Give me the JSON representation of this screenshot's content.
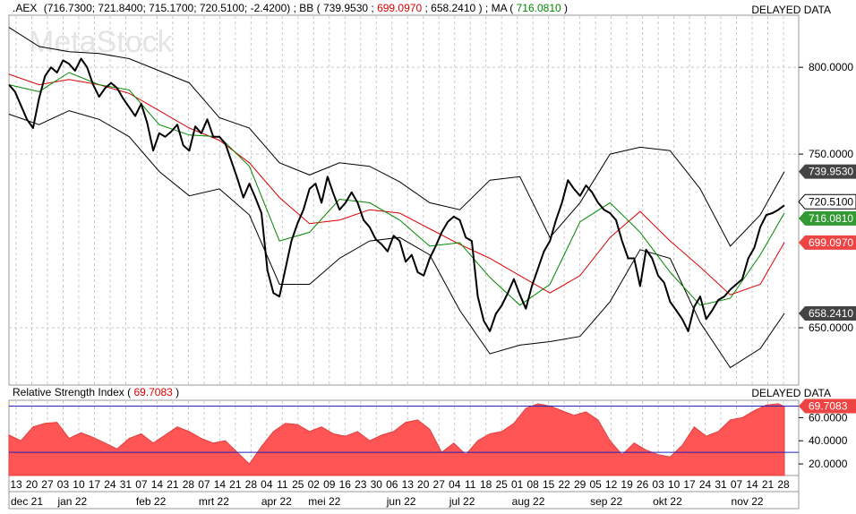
{
  "header": {
    "symbol": ".AEX",
    "ohlc": "(716.7300; 721.8400; 715.1700; 720.5100; -2.4200)",
    "bb_label": "BB",
    "bb_open": " (",
    "bb_upper": "739.9530",
    "bb_mid": "699.0970",
    "bb_lower": "658.2410",
    "ma_label": "MA",
    "ma_open": " (",
    "ma_value": "716.0810",
    "close_paren": ")",
    "sep": "; ",
    "delayed": "DELAYED DATA"
  },
  "watermark": "MetaStock",
  "rsi_header": {
    "label": "Relative Strength Index",
    "value": "69.7083",
    "open": " (",
    "close": ")",
    "delayed": "DELAYED DATA"
  },
  "colors": {
    "price": "#000000",
    "bb_bands": "#000000",
    "bb_mid": "#dd0000",
    "ma": "#008800",
    "rsi_fill": "#ff5555",
    "rsi_levels": "#2222bb",
    "grid": "#c8c8c8"
  },
  "chart_data": [
    {
      "type": "line",
      "panel": "price",
      "y_ticks": [
        "800.0000",
        "750.0000",
        "650.0000"
      ],
      "ylim": [
        617,
        830
      ],
      "last_value_badges": [
        {
          "series": "BB upper",
          "value": 739.953,
          "label": "739.9530"
        },
        {
          "series": "close",
          "value": 720.51,
          "label": "720.5100"
        },
        {
          "series": "MA",
          "value": 716.081,
          "label": "716.0810"
        },
        {
          "series": "BB middle",
          "value": 699.097,
          "label": "699.0970"
        },
        {
          "series": "BB lower",
          "value": 658.241,
          "label": "658.2410"
        }
      ],
      "close": [
        [
          0,
          790
        ],
        [
          1,
          786
        ],
        [
          2,
          778
        ],
        [
          3,
          770
        ],
        [
          4,
          765
        ],
        [
          5,
          782
        ],
        [
          6,
          795
        ],
        [
          7,
          800
        ],
        [
          8,
          797
        ],
        [
          9,
          804
        ],
        [
          10,
          802
        ],
        [
          11,
          798
        ],
        [
          12,
          805
        ],
        [
          13,
          800
        ],
        [
          14,
          790
        ],
        [
          15,
          783
        ],
        [
          16,
          788
        ],
        [
          17,
          791
        ],
        [
          18,
          788
        ],
        [
          19,
          782
        ],
        [
          20,
          777
        ],
        [
          21,
          772
        ],
        [
          22,
          779
        ],
        [
          23,
          768
        ],
        [
          24,
          752
        ],
        [
          25,
          762
        ],
        [
          26,
          760
        ],
        [
          27,
          763
        ],
        [
          28,
          767
        ],
        [
          29,
          755
        ],
        [
          30,
          752
        ],
        [
          31,
          766
        ],
        [
          32,
          762
        ],
        [
          33,
          770
        ],
        [
          34,
          760
        ],
        [
          35,
          760
        ],
        [
          36,
          756
        ],
        [
          37,
          746
        ],
        [
          38,
          736
        ],
        [
          39,
          725
        ],
        [
          40,
          733
        ],
        [
          41,
          725
        ],
        [
          42,
          716
        ],
        [
          43,
          683
        ],
        [
          44,
          670
        ],
        [
          45,
          668
        ],
        [
          46,
          684
        ],
        [
          47,
          700
        ],
        [
          48,
          710
        ],
        [
          49,
          718
        ],
        [
          50,
          730
        ],
        [
          51,
          733
        ],
        [
          52,
          722
        ],
        [
          53,
          737
        ],
        [
          54,
          727
        ],
        [
          55,
          718
        ],
        [
          56,
          722
        ],
        [
          57,
          728
        ],
        [
          58,
          722
        ],
        [
          59,
          712
        ],
        [
          60,
          708
        ],
        [
          61,
          701
        ],
        [
          62,
          698
        ],
        [
          63,
          694
        ],
        [
          64,
          703
        ],
        [
          65,
          700
        ],
        [
          66,
          688
        ],
        [
          67,
          692
        ],
        [
          68,
          682
        ],
        [
          69,
          680
        ],
        [
          70,
          690
        ],
        [
          71,
          697
        ],
        [
          72,
          705
        ],
        [
          73,
          711
        ],
        [
          74,
          714
        ],
        [
          75,
          712
        ],
        [
          76,
          702
        ],
        [
          77,
          700
        ],
        [
          78,
          668
        ],
        [
          79,
          654
        ],
        [
          80,
          648
        ],
        [
          81,
          658
        ],
        [
          82,
          663
        ],
        [
          83,
          670
        ],
        [
          84,
          678
        ],
        [
          85,
          669
        ],
        [
          86,
          661
        ],
        [
          87,
          674
        ],
        [
          88,
          684
        ],
        [
          89,
          694
        ],
        [
          90,
          700
        ],
        [
          91,
          712
        ],
        [
          92,
          722
        ],
        [
          93,
          735
        ],
        [
          94,
          730
        ],
        [
          95,
          726
        ],
        [
          96,
          732
        ],
        [
          97,
          728
        ],
        [
          98,
          722
        ],
        [
          99,
          718
        ],
        [
          100,
          716
        ],
        [
          101,
          712
        ],
        [
          102,
          700
        ],
        [
          103,
          690
        ],
        [
          104,
          690
        ],
        [
          105,
          674
        ],
        [
          106,
          695
        ],
        [
          107,
          690
        ],
        [
          108,
          680
        ],
        [
          109,
          676
        ],
        [
          110,
          665
        ],
        [
          111,
          660
        ],
        [
          112,
          655
        ],
        [
          113,
          648
        ],
        [
          114,
          662
        ],
        [
          115,
          668
        ],
        [
          116,
          655
        ],
        [
          117,
          660
        ],
        [
          118,
          666
        ],
        [
          119,
          668
        ],
        [
          120,
          672
        ],
        [
          121,
          675
        ],
        [
          122,
          678
        ],
        [
          123,
          690
        ],
        [
          124,
          696
        ],
        [
          125,
          708
        ],
        [
          126,
          715
        ],
        [
          127,
          716
        ],
        [
          128,
          718
        ],
        [
          129,
          720.51
        ]
      ],
      "ma": [
        [
          0,
          790
        ],
        [
          5,
          786
        ],
        [
          10,
          797
        ],
        [
          15,
          790
        ],
        [
          20,
          787
        ],
        [
          25,
          767
        ],
        [
          30,
          761
        ],
        [
          35,
          760
        ],
        [
          40,
          743
        ],
        [
          45,
          700
        ],
        [
          50,
          705
        ],
        [
          55,
          724
        ],
        [
          60,
          722
        ],
        [
          65,
          712
        ],
        [
          70,
          697
        ],
        [
          75,
          699
        ],
        [
          80,
          679
        ],
        [
          85,
          663
        ],
        [
          90,
          675
        ],
        [
          95,
          711
        ],
        [
          100,
          722
        ],
        [
          105,
          705
        ],
        [
          110,
          682
        ],
        [
          115,
          663
        ],
        [
          120,
          667
        ],
        [
          125,
          692
        ],
        [
          129,
          716.081
        ]
      ],
      "bb_middle": [
        [
          0,
          796
        ],
        [
          5,
          790
        ],
        [
          10,
          793
        ],
        [
          15,
          790
        ],
        [
          20,
          785
        ],
        [
          25,
          775
        ],
        [
          30,
          765
        ],
        [
          35,
          758
        ],
        [
          40,
          745
        ],
        [
          45,
          725
        ],
        [
          50,
          710
        ],
        [
          55,
          712
        ],
        [
          60,
          718
        ],
        [
          65,
          716
        ],
        [
          70,
          707
        ],
        [
          75,
          698
        ],
        [
          80,
          690
        ],
        [
          85,
          680
        ],
        [
          90,
          670
        ],
        [
          95,
          680
        ],
        [
          100,
          702
        ],
        [
          105,
          717
        ],
        [
          110,
          700
        ],
        [
          115,
          685
        ],
        [
          120,
          669
        ],
        [
          125,
          675
        ],
        [
          129,
          699.097
        ]
      ],
      "bb_upper": [
        [
          0,
          823
        ],
        [
          5,
          812
        ],
        [
          10,
          809
        ],
        [
          15,
          808
        ],
        [
          20,
          805
        ],
        [
          25,
          798
        ],
        [
          30,
          791
        ],
        [
          35,
          771
        ],
        [
          40,
          765
        ],
        [
          45,
          745
        ],
        [
          50,
          738
        ],
        [
          55,
          745
        ],
        [
          60,
          743
        ],
        [
          65,
          734
        ],
        [
          70,
          722
        ],
        [
          75,
          718
        ],
        [
          80,
          735
        ],
        [
          85,
          737
        ],
        [
          90,
          702
        ],
        [
          95,
          722
        ],
        [
          100,
          750
        ],
        [
          105,
          754
        ],
        [
          110,
          752
        ],
        [
          115,
          730
        ],
        [
          120,
          697
        ],
        [
          125,
          715
        ],
        [
          129,
          739.953
        ]
      ],
      "bb_lower": [
        [
          0,
          773
        ],
        [
          5,
          767
        ],
        [
          10,
          775
        ],
        [
          15,
          770
        ],
        [
          20,
          760
        ],
        [
          25,
          740
        ],
        [
          30,
          726
        ],
        [
          35,
          730
        ],
        [
          40,
          715
        ],
        [
          45,
          675
        ],
        [
          50,
          675
        ],
        [
          55,
          690
        ],
        [
          60,
          700
        ],
        [
          65,
          702
        ],
        [
          70,
          692
        ],
        [
          75,
          660
        ],
        [
          80,
          635
        ],
        [
          85,
          640
        ],
        [
          90,
          642
        ],
        [
          95,
          645
        ],
        [
          100,
          665
        ],
        [
          105,
          695
        ],
        [
          110,
          690
        ],
        [
          115,
          653
        ],
        [
          120,
          627
        ],
        [
          125,
          638
        ],
        [
          129,
          658.241
        ]
      ]
    },
    {
      "type": "area",
      "panel": "rsi",
      "y_ticks": [
        "60.0000",
        "40.0000",
        "20.0000"
      ],
      "ylim": [
        10,
        75
      ],
      "levels": [
        70,
        30
      ],
      "last_value": 69.7083,
      "values": [
        [
          0,
          45
        ],
        [
          2,
          40
        ],
        [
          4,
          52
        ],
        [
          6,
          55
        ],
        [
          8,
          56
        ],
        [
          10,
          42
        ],
        [
          12,
          47
        ],
        [
          14,
          43
        ],
        [
          16,
          38
        ],
        [
          18,
          33
        ],
        [
          20,
          42
        ],
        [
          22,
          46
        ],
        [
          24,
          38
        ],
        [
          26,
          45
        ],
        [
          28,
          52
        ],
        [
          30,
          48
        ],
        [
          32,
          42
        ],
        [
          34,
          38
        ],
        [
          36,
          40
        ],
        [
          38,
          30
        ],
        [
          40,
          20
        ],
        [
          42,
          35
        ],
        [
          44,
          48
        ],
        [
          46,
          55
        ],
        [
          48,
          54
        ],
        [
          50,
          48
        ],
        [
          52,
          52
        ],
        [
          54,
          46
        ],
        [
          56,
          44
        ],
        [
          58,
          48
        ],
        [
          60,
          40
        ],
        [
          62,
          45
        ],
        [
          64,
          48
        ],
        [
          66,
          56
        ],
        [
          68,
          58
        ],
        [
          70,
          50
        ],
        [
          72,
          30
        ],
        [
          74,
          38
        ],
        [
          76,
          28
        ],
        [
          78,
          40
        ],
        [
          80,
          46
        ],
        [
          82,
          48
        ],
        [
          84,
          55
        ],
        [
          86,
          68
        ],
        [
          88,
          72
        ],
        [
          90,
          70
        ],
        [
          92,
          66
        ],
        [
          94,
          62
        ],
        [
          96,
          65
        ],
        [
          98,
          58
        ],
        [
          100,
          40
        ],
        [
          102,
          28
        ],
        [
          104,
          38
        ],
        [
          106,
          32
        ],
        [
          108,
          28
        ],
        [
          110,
          26
        ],
        [
          112,
          36
        ],
        [
          114,
          52
        ],
        [
          116,
          44
        ],
        [
          118,
          48
        ],
        [
          120,
          58
        ],
        [
          122,
          60
        ],
        [
          124,
          66
        ],
        [
          126,
          71
        ],
        [
          128,
          72
        ],
        [
          129,
          69.7083
        ]
      ]
    }
  ],
  "x_axis": {
    "day_labels": [
      "13",
      "20",
      "27",
      "03",
      "10",
      "17",
      "24",
      "31",
      "07",
      "14",
      "21",
      "28",
      "07",
      "14",
      "21",
      "28",
      "04",
      "11",
      "25",
      "02",
      "09",
      "16",
      "23",
      "30",
      "06",
      "13",
      "20",
      "27",
      "04",
      "11",
      "18",
      "25",
      "01",
      "08",
      "15",
      "22",
      "29",
      "05",
      "12",
      "19",
      "26",
      "03",
      "10",
      "17",
      "24",
      "31",
      "07",
      "14",
      "21",
      "28"
    ],
    "month_labels": [
      "dec 21",
      "jan 22",
      "feb 22",
      "mrt 22",
      "apr 22",
      "mei 22",
      "jun 22",
      "jul 22",
      "aug 22",
      "sep 22",
      "okt 22",
      "nov 22"
    ]
  }
}
